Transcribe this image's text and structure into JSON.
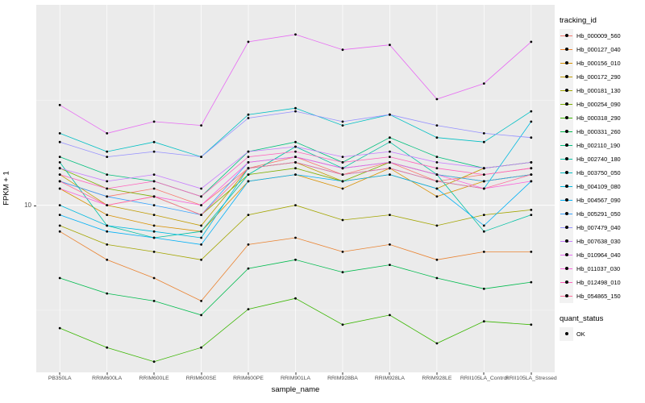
{
  "figure": {
    "y_axis_title": "FPKM + 1",
    "x_axis_title": "sample_name",
    "y_tick_labels": [
      "10"
    ],
    "panel_bg": "#EBEBEB",
    "grid_color": "#FFFFFF",
    "point_color": "#000000",
    "legend": {
      "tracking_title": "tracking_id",
      "quant_title": "quant_status",
      "quant_items": [
        {
          "label": "OK"
        }
      ]
    }
  },
  "chart_data": {
    "type": "line",
    "title": "",
    "xlabel": "sample_name",
    "ylabel": "FPKM + 1",
    "yscale": "log10",
    "ylim": [
      1.6,
      90
    ],
    "y_major_gridlines": [
      10
    ],
    "y_minor_gridlines": [
      3.162,
      31.62
    ],
    "grid": true,
    "legend_position": "right",
    "x": [
      "PB350LA",
      "RRIM600LA",
      "RRIM600LE",
      "RRIM600SE",
      "RRIM600PE",
      "RRIM901LA",
      "RRIM928BA",
      "RRIM928LA",
      "RRIM928LE",
      "RRII105LA_Control",
      "RRII105LA_Stressed"
    ],
    "series": [
      {
        "name": "Hb_000009_560",
        "color": "#F8766D",
        "values": [
          13,
          11,
          12,
          10,
          15,
          17,
          14,
          16,
          13,
          14,
          15
        ]
      },
      {
        "name": "Hb_000127_040",
        "color": "#EA8331",
        "values": [
          7.5,
          5.5,
          4.5,
          3.5,
          6.5,
          7,
          6,
          6.5,
          5.5,
          6,
          6
        ]
      },
      {
        "name": "Hb_000156_010",
        "color": "#D89000",
        "values": [
          12,
          9,
          8,
          7.5,
          13,
          14,
          12,
          15,
          11,
          13,
          14
        ]
      },
      {
        "name": "Hb_000172_290",
        "color": "#C09B00",
        "values": [
          14,
          10,
          9,
          8,
          15,
          16,
          13,
          14,
          12,
          15,
          16
        ]
      },
      {
        "name": "Hb_000181_130",
        "color": "#A3A500",
        "values": [
          8,
          6.5,
          6,
          5.5,
          9,
          10,
          8.5,
          9,
          8,
          9,
          9.5
        ]
      },
      {
        "name": "Hb_000254_090",
        "color": "#7CAE00",
        "values": [
          15,
          12,
          11,
          9,
          14,
          15,
          13,
          16,
          14,
          13,
          14
        ]
      },
      {
        "name": "Hb_000318_290",
        "color": "#39B600",
        "values": [
          2.6,
          2.1,
          1.8,
          2.1,
          3.2,
          3.6,
          2.7,
          3,
          2.2,
          2.8,
          2.7
        ]
      },
      {
        "name": "Hb_000331_260",
        "color": "#00BB4E",
        "values": [
          4.5,
          3.8,
          3.5,
          3,
          5,
          5.5,
          4.8,
          5.2,
          4.5,
          4,
          4.3
        ]
      },
      {
        "name": "Hb_002110_190",
        "color": "#00BF7D",
        "values": [
          17,
          14,
          13,
          11,
          18,
          20,
          16,
          21,
          17,
          15,
          16
        ]
      },
      {
        "name": "Hb_002740_180",
        "color": "#00C1A3",
        "values": [
          16,
          8,
          7,
          7.5,
          14,
          19,
          15,
          20,
          14,
          7.5,
          9
        ]
      },
      {
        "name": "Hb_003750_050",
        "color": "#00BFC4",
        "values": [
          22,
          18,
          20,
          17,
          27,
          29,
          24,
          27,
          21,
          20,
          28
        ]
      },
      {
        "name": "Hb_004109_080",
        "color": "#00BAE0",
        "values": [
          10,
          8,
          7.5,
          7,
          15,
          16,
          14,
          15,
          13,
          12,
          25
        ]
      },
      {
        "name": "Hb_004567_090",
        "color": "#00B0F6",
        "values": [
          9,
          7.5,
          7,
          6.5,
          13,
          14,
          13,
          14,
          12,
          8,
          13
        ]
      },
      {
        "name": "Hb_005291_050",
        "color": "#35A2FF",
        "values": [
          13,
          11,
          10,
          9,
          16,
          17,
          15,
          16,
          14,
          13,
          14
        ]
      },
      {
        "name": "Hb_007479_040",
        "color": "#9590FF",
        "values": [
          20,
          17,
          18,
          17,
          26,
          28,
          25,
          27,
          24,
          22,
          21
        ]
      },
      {
        "name": "Hb_007638_030",
        "color": "#C77CFF",
        "values": [
          15,
          13,
          14,
          12,
          18,
          19,
          17,
          18,
          16,
          15,
          16
        ]
      },
      {
        "name": "Hb_010964_040",
        "color": "#E76BF3",
        "values": [
          30,
          22,
          25,
          24,
          60,
          65,
          55,
          58,
          32,
          38,
          60
        ]
      },
      {
        "name": "Hb_011037_030",
        "color": "#FA62DB",
        "values": [
          12,
          10,
          11,
          10,
          16,
          17,
          15,
          16,
          14,
          12,
          13
        ]
      },
      {
        "name": "Hb_012498_010",
        "color": "#FF62BC",
        "values": [
          14,
          12,
          13,
          11,
          17,
          18,
          16,
          17,
          15,
          14,
          15
        ]
      },
      {
        "name": "Hb_054865_150",
        "color": "#FF6A98",
        "values": [
          13,
          10,
          11,
          9,
          15,
          16,
          14,
          15,
          13,
          12,
          14
        ]
      }
    ]
  }
}
